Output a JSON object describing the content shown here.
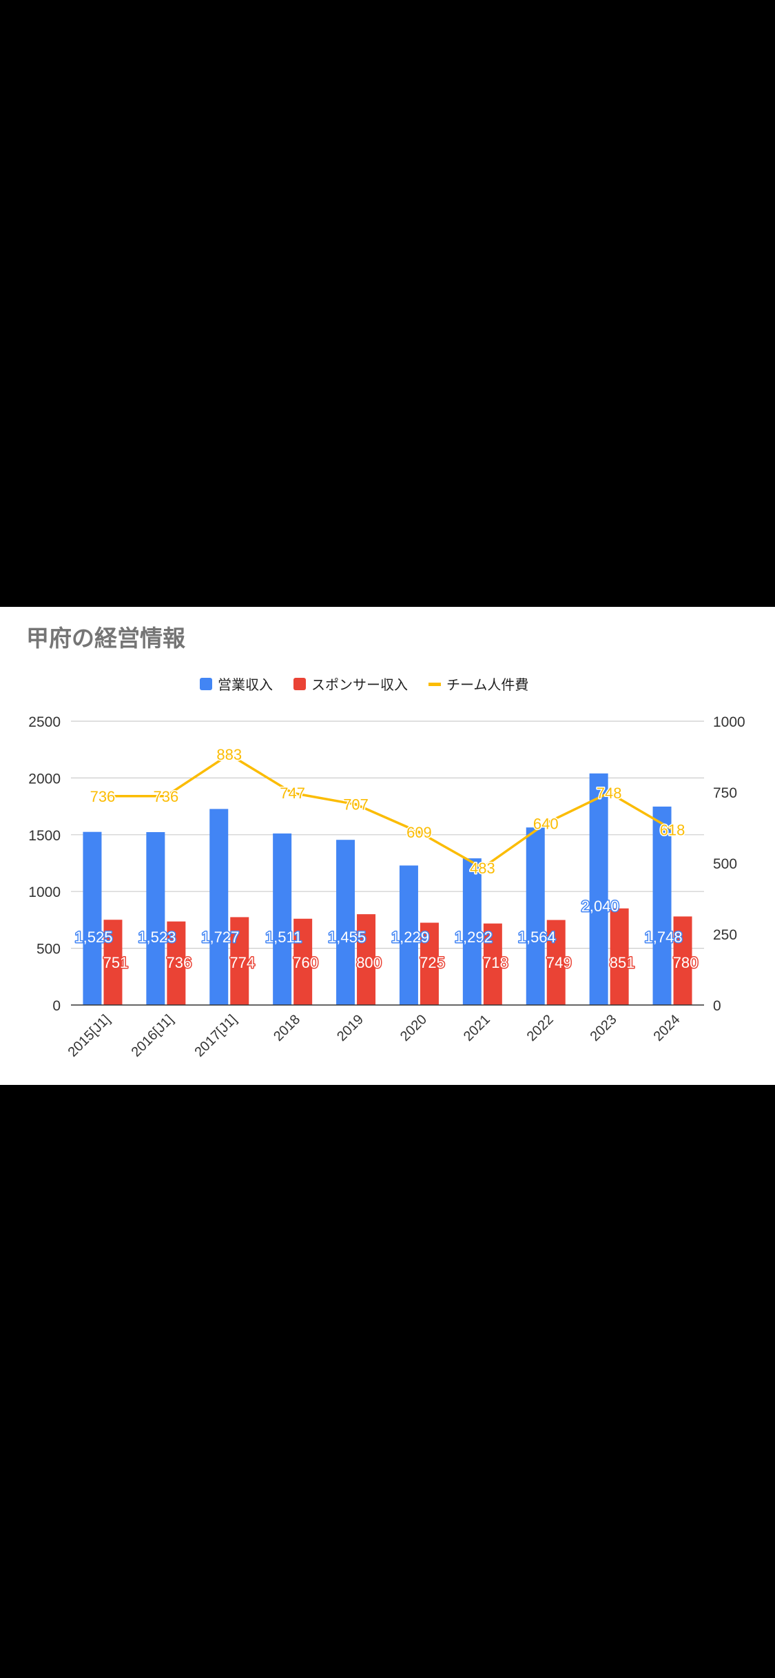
{
  "chart_data": {
    "type": "bar",
    "title": "甲府の経営情報",
    "categories": [
      "2015[J1]",
      "2016[J1]",
      "2017[J1]",
      "2018",
      "2019",
      "2020",
      "2021",
      "2022",
      "2023",
      "2024"
    ],
    "series": [
      {
        "name": "営業収入",
        "type": "bar",
        "axis": "left",
        "color": "#4285f4",
        "values": [
          1525,
          1523,
          1727,
          1511,
          1455,
          1229,
          1292,
          1564,
          2040,
          1748
        ],
        "labels": [
          "1,525",
          "1,523",
          "1,727",
          "1,511",
          "1,455",
          "1,229",
          "1,292",
          "1,564",
          "2,040",
          "1,748"
        ]
      },
      {
        "name": "スポンサー収入",
        "type": "bar",
        "axis": "left",
        "color": "#ea4335",
        "values": [
          751,
          736,
          774,
          760,
          800,
          725,
          718,
          749,
          851,
          780
        ],
        "labels": [
          "751",
          "736",
          "774",
          "760",
          "800",
          "725",
          "718",
          "749",
          "851",
          "780"
        ]
      },
      {
        "name": "チーム人件費",
        "type": "line",
        "axis": "right",
        "color": "#fbbc04",
        "values": [
          736,
          736,
          883,
          747,
          707,
          609,
          483,
          640,
          748,
          618
        ],
        "labels": [
          "736",
          "736",
          "883",
          "747",
          "707",
          "609",
          "483",
          "640",
          "748",
          "618"
        ]
      }
    ],
    "ylim_left": [
      0,
      2500
    ],
    "yticks_left": [
      "0",
      "500",
      "1000",
      "1500",
      "2000",
      "2500"
    ],
    "ylim_right": [
      0,
      1000
    ],
    "yticks_right": [
      "0",
      "250",
      "500",
      "750",
      "1000"
    ],
    "grid": true,
    "legend": "top-center"
  }
}
